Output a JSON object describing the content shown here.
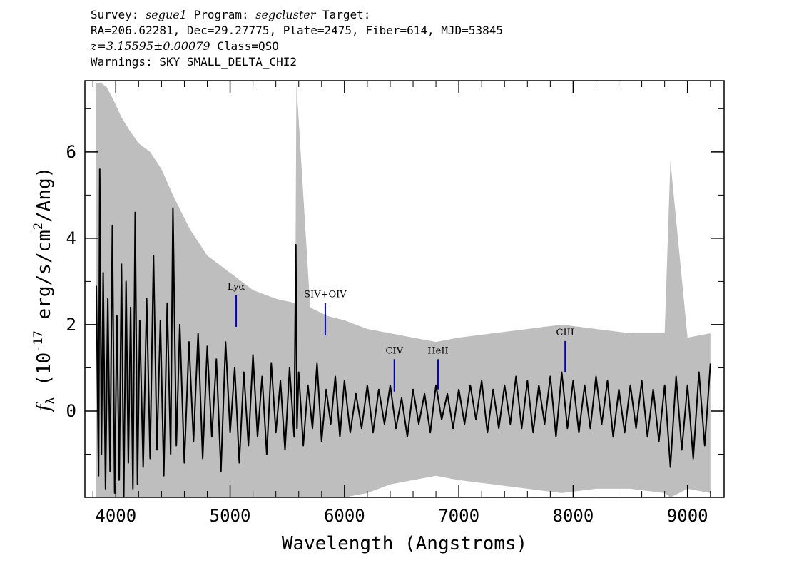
{
  "header": {
    "survey_label": "Survey:",
    "survey_value": "segue1",
    "program_label": "Program:",
    "program_value": "segcluster",
    "target_label": "Target:",
    "line2": "RA=206.62281, Dec=29.27775, Plate=2475, Fiber=614, MJD=53845",
    "redshift": "z=3.15595±0.00079",
    "class_text": "Class=QSO",
    "warnings": "Warnings: SKY SMALL_DELTA_CHI2"
  },
  "chart_data": {
    "type": "line",
    "xlabel": "Wavelength (Angstroms)",
    "ylabel_prefix": "f",
    "ylabel_sub": "λ",
    "ylabel_rest": " (10",
    "ylabel_exp": "-17",
    "ylabel_unit": " erg/s/cm",
    "ylabel_unit_exp": "2",
    "ylabel_end": "/Ang)",
    "xlim": [
      3730,
      9320
    ],
    "ylim": [
      -2.0,
      7.65
    ],
    "xticks": [
      "4000",
      "5000",
      "6000",
      "7000",
      "8000",
      "9000"
    ],
    "xtick_values": [
      4000,
      5000,
      6000,
      7000,
      8000,
      9000
    ],
    "yticks": [
      "0",
      "2",
      "4",
      "6"
    ],
    "ytick_values": [
      0,
      2,
      4,
      6
    ],
    "series": [
      {
        "role": "error",
        "color": "#bebebe",
        "x": [
          3830,
          3870,
          3920,
          3980,
          4050,
          4120,
          4200,
          4300,
          4400,
          4500,
          4650,
          4800,
          5000,
          5200,
          5400,
          5570,
          5580,
          5700,
          5850,
          6000,
          6200,
          6400,
          6600,
          6800,
          7000,
          7300,
          7600,
          7900,
          8200,
          8500,
          8800,
          8850,
          9000,
          9200
        ],
        "y_upper": [
          7.6,
          7.6,
          7.5,
          7.2,
          6.8,
          6.5,
          6.2,
          6.0,
          5.6,
          5.0,
          4.2,
          3.6,
          3.2,
          2.8,
          2.6,
          2.5,
          7.6,
          2.4,
          2.2,
          2.1,
          1.9,
          1.8,
          1.7,
          1.6,
          1.7,
          1.8,
          1.9,
          2.0,
          1.9,
          1.8,
          1.8,
          5.8,
          1.7,
          1.8
        ],
        "y_lower": [
          -2.0,
          -2.0,
          -2.0,
          -2.0,
          -2.0,
          -2.0,
          -2.0,
          -2.0,
          -2.0,
          -2.0,
          -2.0,
          -2.0,
          -2.0,
          -2.0,
          -2.0,
          -2.0,
          -2.0,
          -2.0,
          -2.0,
          -2.0,
          -1.9,
          -1.7,
          -1.6,
          -1.5,
          -1.6,
          -1.7,
          -1.8,
          -1.9,
          -1.8,
          -1.8,
          -1.9,
          -2.0,
          -1.8,
          -1.9
        ]
      },
      {
        "role": "flux",
        "color": "#000000",
        "x": [
          3830,
          3850,
          3860,
          3875,
          3890,
          3910,
          3930,
          3950,
          3970,
          3990,
          4010,
          4030,
          4050,
          4070,
          4090,
          4110,
          4130,
          4150,
          4170,
          4190,
          4210,
          4240,
          4270,
          4300,
          4330,
          4360,
          4390,
          4420,
          4450,
          4480,
          4500,
          4530,
          4560,
          4600,
          4640,
          4680,
          4720,
          4760,
          4800,
          4840,
          4880,
          4920,
          4960,
          5000,
          5040,
          5080,
          5120,
          5160,
          5200,
          5240,
          5280,
          5320,
          5360,
          5400,
          5440,
          5480,
          5520,
          5560,
          5575,
          5585,
          5600,
          5640,
          5680,
          5720,
          5760,
          5800,
          5840,
          5880,
          5920,
          5960,
          6000,
          6050,
          6100,
          6150,
          6200,
          6250,
          6300,
          6350,
          6400,
          6450,
          6500,
          6550,
          6600,
          6650,
          6700,
          6750,
          6800,
          6850,
          6900,
          6950,
          7000,
          7050,
          7100,
          7150,
          7200,
          7250,
          7300,
          7350,
          7400,
          7450,
          7500,
          7550,
          7600,
          7650,
          7700,
          7750,
          7800,
          7850,
          7900,
          7950,
          8000,
          8050,
          8100,
          8150,
          8200,
          8250,
          8300,
          8350,
          8400,
          8450,
          8500,
          8550,
          8600,
          8650,
          8700,
          8750,
          8800,
          8850,
          8900,
          8950,
          9000,
          9050,
          9100,
          9150,
          9200
        ],
        "y": [
          2.9,
          -1.5,
          5.6,
          -1.0,
          3.2,
          -1.8,
          2.6,
          -1.4,
          4.3,
          -1.9,
          2.2,
          -1.6,
          3.4,
          -2.0,
          3.0,
          -1.2,
          2.4,
          -1.8,
          4.6,
          -1.7,
          2.1,
          -1.3,
          2.6,
          -1.1,
          3.6,
          -0.9,
          2.1,
          -1.5,
          2.5,
          -1.0,
          4.7,
          -0.8,
          2.0,
          -1.2,
          1.6,
          -0.7,
          1.8,
          -1.1,
          1.5,
          -0.6,
          1.2,
          -1.4,
          1.6,
          -0.5,
          1.0,
          -1.2,
          0.9,
          -0.8,
          1.3,
          -0.6,
          0.8,
          -1.0,
          1.1,
          -0.5,
          0.7,
          -0.9,
          1.0,
          -0.6,
          3.85,
          -0.4,
          0.9,
          -0.8,
          0.6,
          -0.4,
          1.1,
          -0.7,
          0.5,
          -0.3,
          0.8,
          -0.6,
          0.7,
          -0.5,
          0.4,
          -0.4,
          0.6,
          -0.5,
          0.5,
          -0.3,
          0.6,
          -0.4,
          0.3,
          -0.6,
          0.5,
          -0.3,
          0.4,
          -0.5,
          0.6,
          -0.2,
          0.4,
          -0.4,
          0.5,
          -0.3,
          0.6,
          -0.2,
          0.7,
          -0.5,
          0.5,
          -0.4,
          0.6,
          -0.3,
          0.8,
          -0.4,
          0.7,
          -0.5,
          0.6,
          -0.3,
          0.8,
          -0.6,
          0.9,
          -0.4,
          0.7,
          -0.5,
          0.6,
          -0.4,
          0.8,
          -0.3,
          0.7,
          -0.6,
          0.5,
          -0.5,
          0.6,
          -0.4,
          0.7,
          -0.6,
          0.5,
          -0.7,
          0.6,
          -1.3,
          0.8,
          -0.9,
          0.6,
          -1.1,
          0.9,
          -0.8,
          1.1
        ]
      }
    ],
    "line_markers": [
      {
        "label": "Lyα",
        "x": 5053,
        "y_top": 2.68,
        "y_bottom": 1.95
      },
      {
        "label": "SIV+OIV",
        "x": 5832,
        "y_top": 2.5,
        "y_bottom": 1.75
      },
      {
        "label": "CIV",
        "x": 6436,
        "y_top": 1.2,
        "y_bottom": 0.45
      },
      {
        "label": "HeII",
        "x": 6818,
        "y_top": 1.2,
        "y_bottom": 0.5
      },
      {
        "label": "CIII",
        "x": 7930,
        "y_top": 1.62,
        "y_bottom": 0.9
      }
    ],
    "marker_color": "#0000cc",
    "grid": false
  }
}
